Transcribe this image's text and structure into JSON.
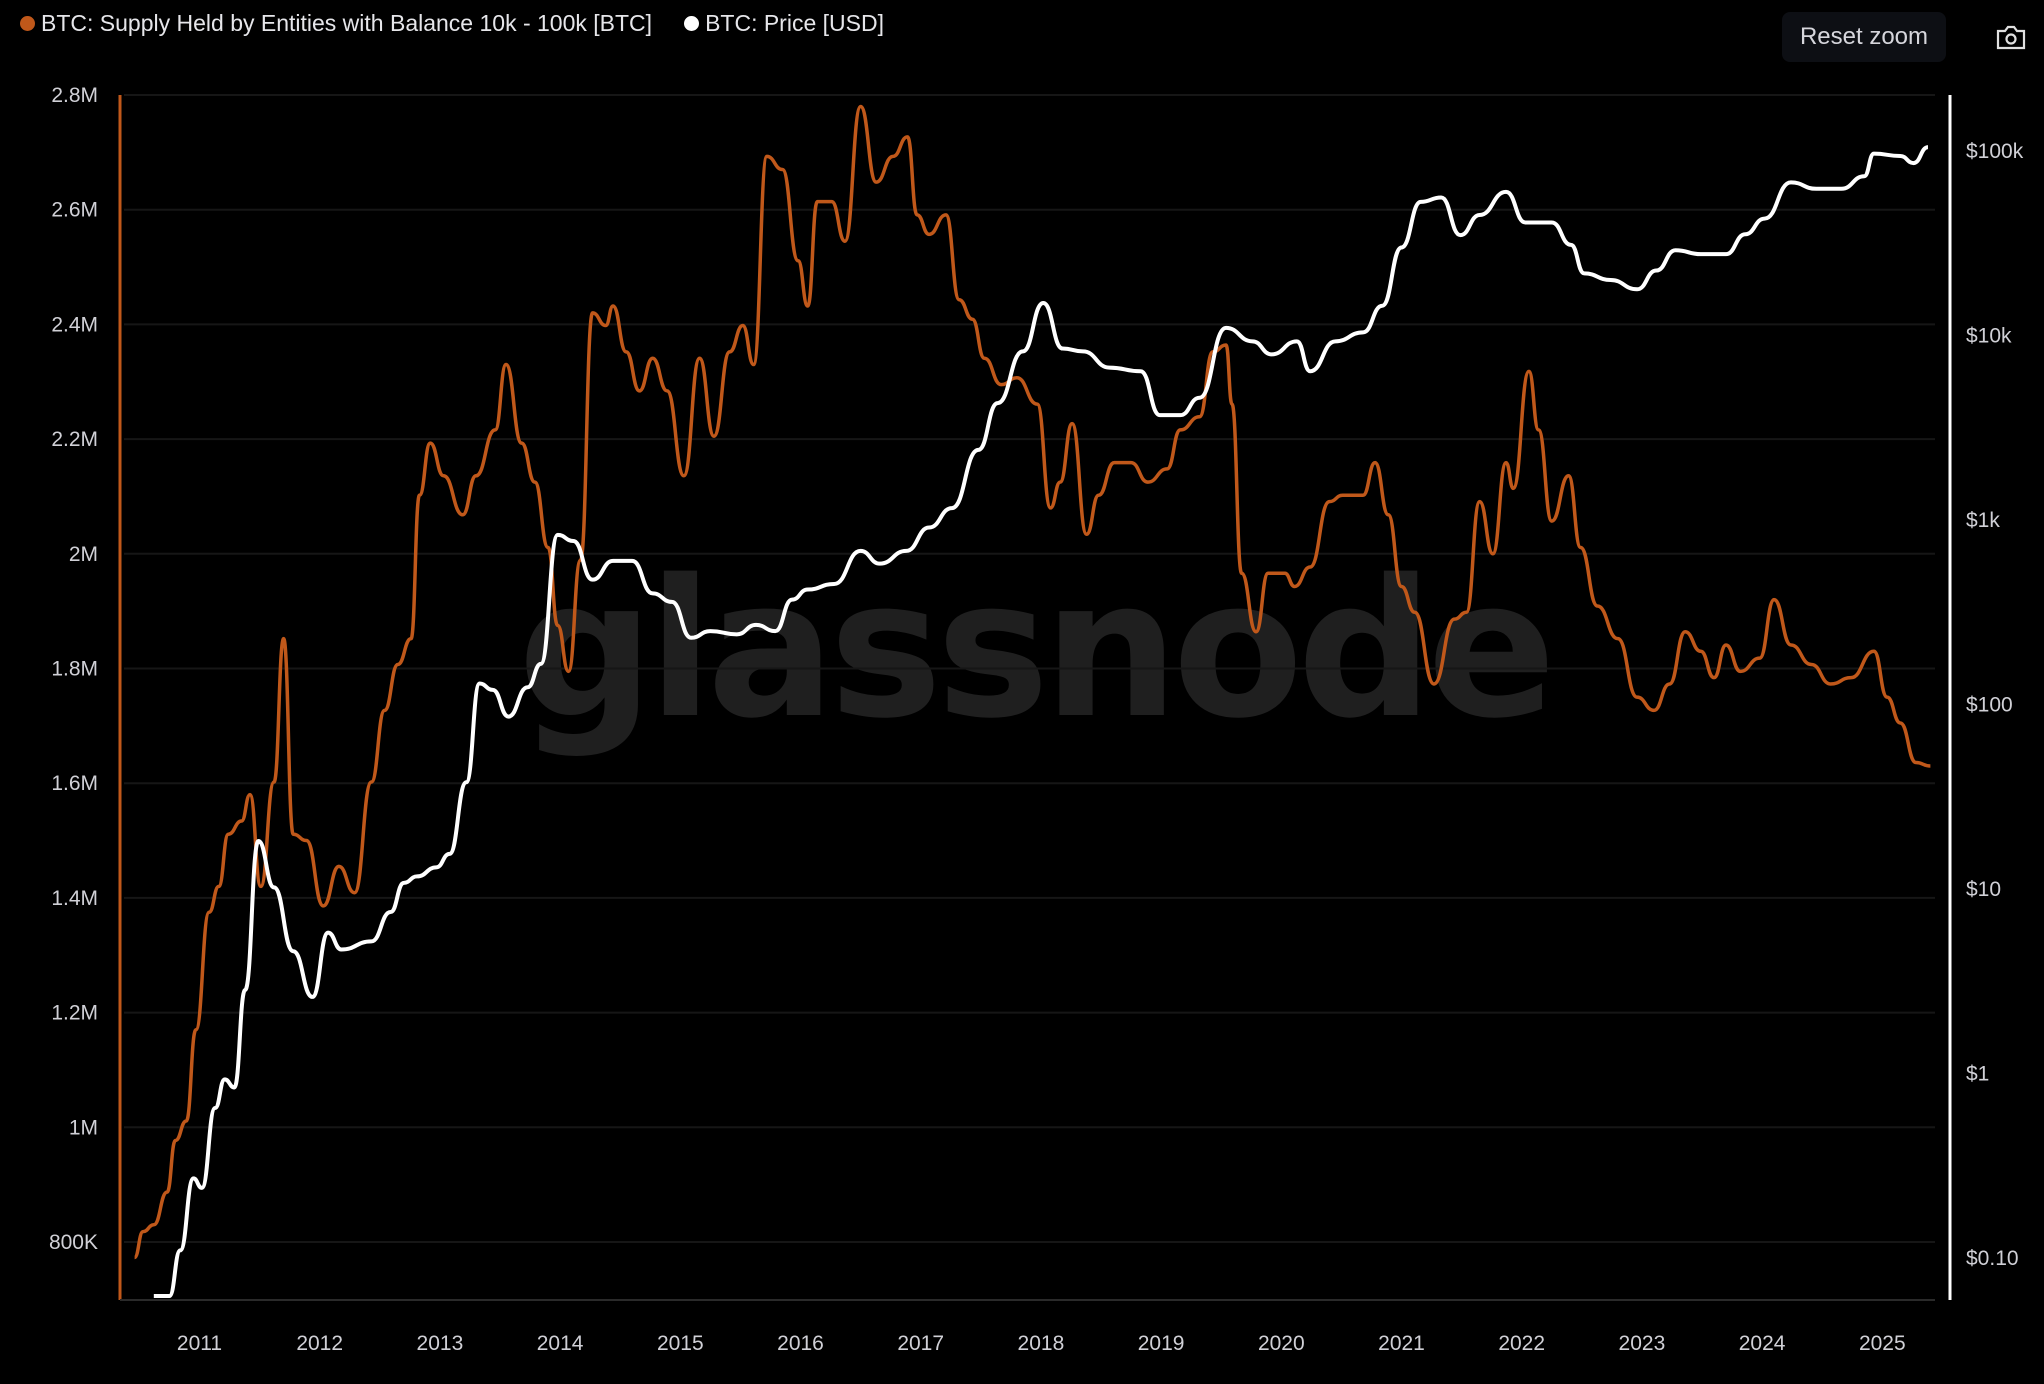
{
  "legend": [
    {
      "label": "BTC: Supply Held by Entities with Balance 10k - 100k [BTC]",
      "color": "#c0581a"
    },
    {
      "label": "BTC: Price [USD]",
      "color": "#ffffff"
    }
  ],
  "toolbar": {
    "reset_zoom_label": "Reset zoom",
    "screenshot_icon": "camera-icon"
  },
  "watermark": "glassnode",
  "chart_data": {
    "type": "line",
    "title": "",
    "grid": true,
    "legend_position": "top-left",
    "x_axis": {
      "range": [
        2010.4,
        2025.45
      ],
      "ticks": [
        "2011",
        "2012",
        "2013",
        "2014",
        "2015",
        "2016",
        "2017",
        "2018",
        "2019",
        "2020",
        "2021",
        "2022",
        "2023",
        "2024",
        "2025"
      ]
    },
    "y_left": {
      "range": [
        700000,
        2800000
      ],
      "ticks": [
        800000,
        1000000,
        1200000,
        1400000,
        1600000,
        1800000,
        2000000,
        2200000,
        2400000,
        2600000,
        2800000
      ],
      "tick_labels": [
        "800K",
        "1M",
        "1.2M",
        "1.4M",
        "1.6M",
        "1.8M",
        "2M",
        "2.2M",
        "2.4M",
        "2.6M",
        "2.8M"
      ]
    },
    "y_right": {
      "scale": "log",
      "range": [
        0.0575,
        180000
      ],
      "ticks": [
        0.1,
        1,
        10,
        100,
        1000,
        10000,
        100000
      ],
      "tick_labels": [
        "$0.10",
        "$1",
        "$10",
        "$100",
        "$1k",
        "$10k",
        "$100k"
      ]
    },
    "series": [
      {
        "name": "BTC: Supply Held by Entities with Balance 10k - 100k [BTC]",
        "axis": "left",
        "color": "#c0581a",
        "x": [
          2010.46,
          2010.53,
          2010.62,
          2010.73,
          2010.8,
          2010.89,
          2010.97,
          2011.08,
          2011.16,
          2011.24,
          2011.35,
          2011.42,
          2011.51,
          2011.62,
          2011.7,
          2011.78,
          2011.89,
          2012.03,
          2012.16,
          2012.29,
          2012.43,
          2012.54,
          2012.65,
          2012.76,
          2012.83,
          2012.92,
          2013.03,
          2013.19,
          2013.3,
          2013.46,
          2013.55,
          2013.68,
          2013.79,
          2013.9,
          2013.98,
          2014.07,
          2014.17,
          2014.27,
          2014.38,
          2014.44,
          2014.55,
          2014.66,
          2014.77,
          2014.89,
          2015.03,
          2015.16,
          2015.28,
          2015.41,
          2015.52,
          2015.61,
          2015.72,
          2015.85,
          2015.98,
          2016.06,
          2016.14,
          2016.26,
          2016.37,
          2016.5,
          2016.63,
          2016.77,
          2016.89,
          2016.97,
          2017.07,
          2017.21,
          2017.32,
          2017.43,
          2017.53,
          2017.67,
          2017.8,
          2017.97,
          2018.08,
          2018.16,
          2018.26,
          2018.38,
          2018.48,
          2018.61,
          2018.75,
          2018.89,
          2019.05,
          2019.16,
          2019.32,
          2019.43,
          2019.54,
          2019.59,
          2019.67,
          2019.79,
          2019.89,
          2020.03,
          2020.11,
          2020.24,
          2020.4,
          2020.51,
          2020.68,
          2020.78,
          2020.89,
          2021.0,
          2021.11,
          2021.27,
          2021.44,
          2021.54,
          2021.65,
          2021.76,
          2021.87,
          2021.93,
          2022.06,
          2022.14,
          2022.25,
          2022.39,
          2022.49,
          2022.63,
          2022.8,
          2022.96,
          2023.1,
          2023.23,
          2023.36,
          2023.49,
          2023.6,
          2023.7,
          2023.82,
          2023.98,
          2024.1,
          2024.24,
          2024.41,
          2024.57,
          2024.74,
          2024.93,
          2025.04,
          2025.15,
          2025.28,
          2025.4
        ],
        "values": [
          773000,
          818000,
          830000,
          887000,
          977000,
          1011000,
          1170000,
          1375000,
          1420000,
          1511000,
          1534000,
          1580000,
          1420000,
          1602000,
          1852000,
          1511000,
          1500000,
          1386000,
          1455000,
          1409000,
          1602000,
          1727000,
          1807000,
          1852000,
          2102000,
          2193000,
          2136000,
          2068000,
          2136000,
          2216000,
          2330000,
          2193000,
          2125000,
          2011000,
          1875000,
          1795000,
          1989000,
          2420000,
          2398000,
          2432000,
          2352000,
          2284000,
          2341000,
          2284000,
          2136000,
          2341000,
          2205000,
          2352000,
          2398000,
          2330000,
          2693000,
          2670000,
          2511000,
          2432000,
          2614000,
          2614000,
          2545000,
          2780000,
          2648000,
          2693000,
          2727000,
          2591000,
          2557000,
          2591000,
          2443000,
          2409000,
          2341000,
          2295000,
          2307000,
          2261000,
          2080000,
          2125000,
          2227000,
          2034000,
          2102000,
          2159000,
          2159000,
          2125000,
          2148000,
          2216000,
          2239000,
          2352000,
          2364000,
          2261000,
          1966000,
          1864000,
          1966000,
          1966000,
          1943000,
          1977000,
          2091000,
          2102000,
          2102000,
          2159000,
          2068000,
          1943000,
          1898000,
          1773000,
          1886000,
          1898000,
          2091000,
          2000000,
          2159000,
          2114000,
          2318000,
          2216000,
          2057000,
          2136000,
          2011000,
          1909000,
          1852000,
          1750000,
          1727000,
          1773000,
          1864000,
          1830000,
          1784000,
          1841000,
          1795000,
          1818000,
          1920000,
          1841000,
          1807000,
          1773000,
          1784000,
          1830000,
          1750000,
          1705000,
          1636000,
          1630000
        ]
      },
      {
        "name": "BTC: Price [USD]",
        "axis": "right",
        "color": "#ffffff",
        "x": [
          2010.62,
          2010.75,
          2010.84,
          2010.95,
          2011.02,
          2011.13,
          2011.21,
          2011.29,
          2011.38,
          2011.49,
          2011.62,
          2011.78,
          2011.94,
          2012.07,
          2012.18,
          2012.43,
          2012.59,
          2012.7,
          2012.81,
          2012.97,
          2013.08,
          2013.22,
          2013.33,
          2013.44,
          2013.57,
          2013.73,
          2013.84,
          2013.98,
          2014.11,
          2014.27,
          2014.44,
          2014.6,
          2014.77,
          2014.93,
          2015.09,
          2015.25,
          2015.47,
          2015.63,
          2015.79,
          2015.93,
          2016.06,
          2016.28,
          2016.5,
          2016.66,
          2016.88,
          2017.07,
          2017.26,
          2017.48,
          2017.64,
          2017.85,
          2018.02,
          2018.18,
          2018.35,
          2018.57,
          2018.83,
          2018.99,
          2019.16,
          2019.32,
          2019.54,
          2019.76,
          2019.92,
          2020.13,
          2020.24,
          2020.45,
          2020.68,
          2020.84,
          2021.0,
          2021.16,
          2021.33,
          2021.49,
          2021.65,
          2021.87,
          2022.03,
          2022.25,
          2022.41,
          2022.52,
          2022.74,
          2022.96,
          2023.12,
          2023.28,
          2023.49,
          2023.7,
          2023.86,
          2024.02,
          2024.24,
          2024.45,
          2024.66,
          2024.85,
          2024.93,
          2025.15,
          2025.26,
          2025.38
        ],
        "values": [
          0.06,
          0.06,
          0.11,
          0.27,
          0.24,
          0.65,
          0.93,
          0.84,
          2.84,
          18.2,
          10.2,
          4.6,
          2.6,
          5.8,
          4.7,
          5.2,
          7.5,
          10.8,
          11.7,
          13.1,
          15.5,
          37.9,
          130,
          120,
          86,
          124,
          166,
          830,
          770,
          475,
          600,
          600,
          400,
          360,
          230,
          250,
          240,
          270,
          250,
          370,
          420,
          450,
          680,
          580,
          680,
          910,
          1160,
          2400,
          4300,
          8200,
          15000,
          8500,
          8200,
          6700,
          6400,
          3700,
          3700,
          4600,
          11000,
          9300,
          7900,
          9300,
          6400,
          9300,
          10400,
          14500,
          30000,
          53000,
          56000,
          35000,
          45000,
          60000,
          41000,
          41000,
          31000,
          21700,
          20000,
          17800,
          22500,
          29000,
          27600,
          27600,
          35400,
          43000,
          67600,
          62400,
          62400,
          73000,
          96800,
          94000,
          86000,
          105000
        ]
      }
    ]
  }
}
